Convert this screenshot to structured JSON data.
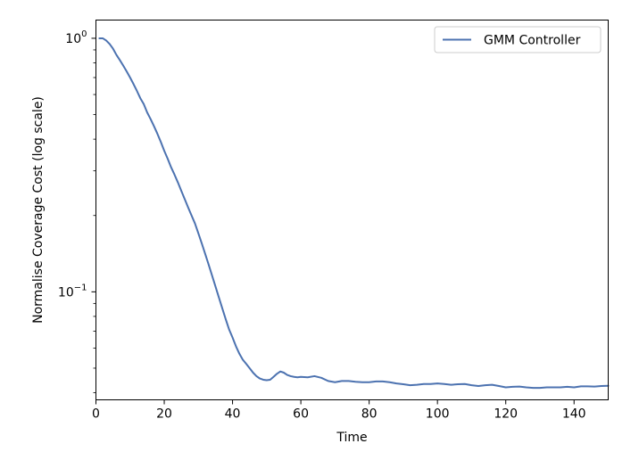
{
  "chart_data": {
    "type": "line",
    "title": "",
    "xlabel": "Time",
    "ylabel": "Normalise Coverage Cost (log scale)",
    "xlim": [
      0,
      150
    ],
    "ylim": [
      0.0375,
      1.18
    ],
    "yscale": "log",
    "grid": false,
    "legend_position": "top-right",
    "x_ticks": [
      0,
      20,
      40,
      60,
      80,
      100,
      120,
      140
    ],
    "x_tick_labels": [
      "0",
      "20",
      "40",
      "60",
      "80",
      "100",
      "120",
      "140"
    ],
    "y_ticks": [
      {
        "value": 1.0,
        "base": "10",
        "exp": "0"
      },
      {
        "value": 0.1,
        "base": "10",
        "exp": "−1"
      }
    ],
    "series": [
      {
        "name": "GMM Controller",
        "color": "#4c72b0",
        "x": [
          1,
          2,
          3,
          4,
          5,
          6,
          7,
          8,
          9,
          10,
          11,
          12,
          13,
          14,
          15,
          16,
          17,
          18,
          19,
          20,
          21,
          22,
          23,
          24,
          25,
          26,
          27,
          28,
          29,
          30,
          31,
          32,
          33,
          34,
          35,
          36,
          37,
          38,
          39,
          40,
          41,
          42,
          43,
          44,
          45,
          46,
          47,
          48,
          49,
          50,
          51,
          52,
          53,
          54,
          55,
          56,
          57,
          58,
          59,
          60,
          62,
          64,
          66,
          68,
          70,
          72,
          74,
          76,
          78,
          80,
          82,
          84,
          86,
          88,
          90,
          92,
          94,
          96,
          98,
          100,
          102,
          104,
          106,
          108,
          110,
          112,
          114,
          116,
          118,
          120,
          122,
          124,
          126,
          128,
          130,
          132,
          134,
          136,
          138,
          140,
          142,
          144,
          146,
          148,
          150
        ],
        "y": [
          1.0,
          1.0,
          0.98,
          0.95,
          0.91,
          0.86,
          0.82,
          0.78,
          0.74,
          0.7,
          0.66,
          0.62,
          0.58,
          0.55,
          0.51,
          0.48,
          0.45,
          0.42,
          0.39,
          0.36,
          0.335,
          0.31,
          0.29,
          0.27,
          0.25,
          0.232,
          0.215,
          0.2,
          0.186,
          0.17,
          0.155,
          0.141,
          0.128,
          0.116,
          0.105,
          0.095,
          0.086,
          0.078,
          0.071,
          0.066,
          0.061,
          0.057,
          0.054,
          0.052,
          0.05,
          0.048,
          0.0465,
          0.0455,
          0.045,
          0.0448,
          0.045,
          0.0462,
          0.0475,
          0.0485,
          0.048,
          0.047,
          0.0465,
          0.0462,
          0.046,
          0.0462,
          0.046,
          0.0465,
          0.0458,
          0.0445,
          0.044,
          0.0445,
          0.0445,
          0.0442,
          0.044,
          0.044,
          0.0443,
          0.0443,
          0.044,
          0.0435,
          0.0432,
          0.0428,
          0.043,
          0.0433,
          0.0433,
          0.0435,
          0.0433,
          0.043,
          0.0432,
          0.0433,
          0.0428,
          0.0425,
          0.0428,
          0.043,
          0.0425,
          0.042,
          0.0422,
          0.0423,
          0.042,
          0.0418,
          0.0418,
          0.042,
          0.042,
          0.042,
          0.0422,
          0.042,
          0.0424,
          0.0424,
          0.0423,
          0.0425,
          0.0426
        ]
      }
    ]
  }
}
